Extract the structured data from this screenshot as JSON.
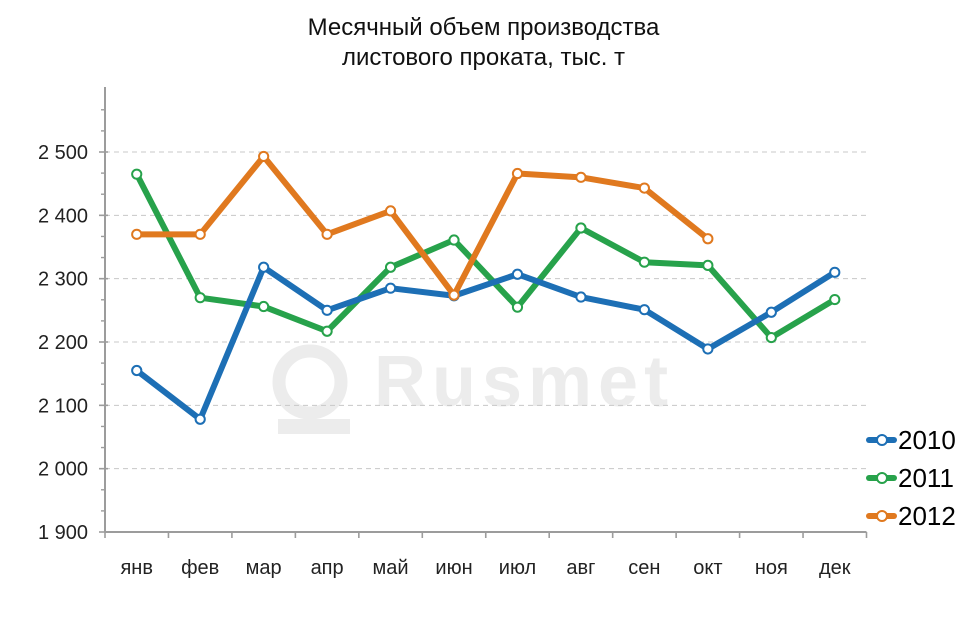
{
  "title": {
    "line1": "Месячный объем производства",
    "line2": "листового проката, тыс. т"
  },
  "watermark": {
    "text": "Rusmet"
  },
  "chart_data": {
    "type": "line",
    "title": "Месячный объем производства листового проката, тыс. т",
    "xlabel": "",
    "ylabel": "тыс. т",
    "categories": [
      "янв",
      "фев",
      "мар",
      "апр",
      "май",
      "июн",
      "июл",
      "авг",
      "сен",
      "окт",
      "ноя",
      "дек"
    ],
    "series": [
      {
        "name": "2010",
        "color": "#1d6fb5",
        "values": [
          2155,
          2078,
          2318,
          2250,
          2285,
          2273,
          2307,
          2271,
          2251,
          2189,
          2247,
          2310
        ]
      },
      {
        "name": "2011",
        "color": "#27a24b",
        "values": [
          2465,
          2270,
          2256,
          2217,
          2318,
          2361,
          2255,
          2380,
          2326,
          2321,
          2207,
          2267
        ]
      },
      {
        "name": "2012",
        "color": "#e0791f",
        "values": [
          2370,
          2370,
          2493,
          2370,
          2407,
          2274,
          2466,
          2460,
          2443,
          2363
        ]
      }
    ],
    "ylim": [
      1900,
      2590
    ],
    "yticks": [
      {
        "label": "1 900",
        "value": 1900
      },
      {
        "label": "2 000",
        "value": 2000
      },
      {
        "label": "2 100",
        "value": 2100
      },
      {
        "label": "2 200",
        "value": 2200
      },
      {
        "label": "2 300",
        "value": 2300
      },
      {
        "label": "2 400",
        "value": 2400
      },
      {
        "label": "2 500",
        "value": 2500
      }
    ],
    "grid": "horizontal-dashed",
    "legend_position": "right",
    "marker": "circle-white-fill",
    "colors": {
      "grid": "#c8c8c8",
      "axis": "#9c9c9c",
      "tick_text": "#222222",
      "watermark": "#ececec"
    }
  }
}
